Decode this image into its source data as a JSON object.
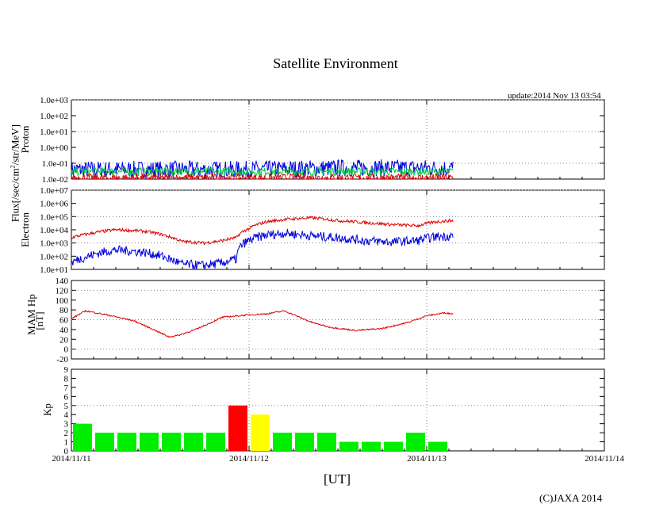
{
  "title": "Satellite Environment",
  "update": "update:2014 Nov 13 03:54",
  "copyright": "(C)JAXA 2014",
  "xaxis_label": "[UT]",
  "x_ticks": [
    "2014/11/11",
    "2014/11/12",
    "2014/11/13",
    "2014/11/14"
  ],
  "flux_label": "Flux[/sec/cm2/str/MeV]",
  "colors": {
    "red": "#dd0000",
    "blue": "#0000dd",
    "green": "#00cc44",
    "kp_green": "#00ee00",
    "kp_yellow": "#ffff00",
    "kp_red": "#ff0000"
  },
  "chart_data": [
    {
      "type": "line",
      "ylabel": "Proton",
      "scale": "log",
      "ylim": [
        0.01,
        1000
      ],
      "y_ticks": [
        "1.0e-02",
        "1.0e-01",
        "1.0e+00",
        "1.0e+01",
        "1.0e+02",
        "1.0e+03"
      ],
      "grid": true,
      "series_colors": [
        "blue",
        "green",
        "red"
      ],
      "x_days": [
        0,
        0.5,
        1.0,
        1.5,
        2.0,
        2.15
      ],
      "series": [
        {
          "values": [
            0.04,
            0.04,
            0.04,
            0.05,
            0.05,
            0.05
          ]
        },
        {
          "values": [
            0.03,
            0.03,
            0.03,
            0.03,
            0.03,
            0.03
          ]
        },
        {
          "values": [
            0.012,
            0.012,
            0.012,
            0.012,
            0.012,
            0.012
          ]
        }
      ]
    },
    {
      "type": "line",
      "ylabel": "Electron",
      "scale": "log",
      "ylim": [
        10,
        10000000
      ],
      "y_ticks": [
        "1.0e+01",
        "1.0e+02",
        "1.0e+03",
        "1.0e+04",
        "1.0e+05",
        "1.0e+06",
        "1.0e+07"
      ],
      "grid": true,
      "series_colors": [
        "red",
        "blue"
      ],
      "x_days": [
        0,
        0.1,
        0.25,
        0.4,
        0.55,
        0.62,
        0.75,
        0.85,
        0.93,
        1.0,
        1.1,
        1.2,
        1.35,
        1.5,
        1.65,
        1.8,
        1.95,
        2.05,
        2.15
      ],
      "series": [
        {
          "values": [
            2500,
            5000,
            10000,
            8000,
            3000,
            1300,
            1000,
            1500,
            2500,
            12000,
            40000,
            60000,
            80000,
            50000,
            35000,
            25000,
            20000,
            40000,
            50000
          ]
        },
        {
          "values": [
            30,
            100,
            300,
            200,
            60,
            25,
            20,
            30,
            60,
            1500,
            4000,
            5500,
            3500,
            2500,
            1500,
            1200,
            1500,
            3000,
            3500
          ]
        }
      ]
    },
    {
      "type": "line",
      "ylabel": "MAM Hp",
      "ylabel2": "[nT]",
      "scale": "linear",
      "ylim": [
        -20,
        140
      ],
      "y_ticks": [
        "-20",
        "0",
        "20",
        "40",
        "60",
        "80",
        "100",
        "120",
        "140"
      ],
      "grid": true,
      "series_colors": [
        "red"
      ],
      "x_days": [
        0,
        0.08,
        0.2,
        0.35,
        0.45,
        0.55,
        0.6,
        0.7,
        0.85,
        1.0,
        1.1,
        1.2,
        1.35,
        1.45,
        1.6,
        1.75,
        1.9,
        2.0,
        2.1,
        2.15
      ],
      "series": [
        {
          "values": [
            62,
            78,
            70,
            58,
            42,
            25,
            28,
            40,
            65,
            70,
            72,
            78,
            55,
            45,
            38,
            42,
            55,
            68,
            74,
            72
          ]
        }
      ]
    },
    {
      "type": "bar",
      "ylabel": "Kp",
      "ylim": [
        0,
        9
      ],
      "y_ticks": [
        "0",
        "1",
        "2",
        "3",
        "4",
        "5",
        "6",
        "7",
        "8",
        "9"
      ],
      "threshold": 5,
      "bin_hours": 3,
      "values": [
        3,
        2,
        2,
        2,
        2,
        2,
        2,
        5,
        4,
        2,
        2,
        2,
        1,
        1,
        1,
        2,
        1
      ],
      "bar_colors": [
        "kp_green",
        "kp_green",
        "kp_green",
        "kp_green",
        "kp_green",
        "kp_green",
        "kp_green",
        "kp_red",
        "kp_yellow",
        "kp_green",
        "kp_green",
        "kp_green",
        "kp_green",
        "kp_green",
        "kp_green",
        "kp_green",
        "kp_green"
      ]
    }
  ]
}
